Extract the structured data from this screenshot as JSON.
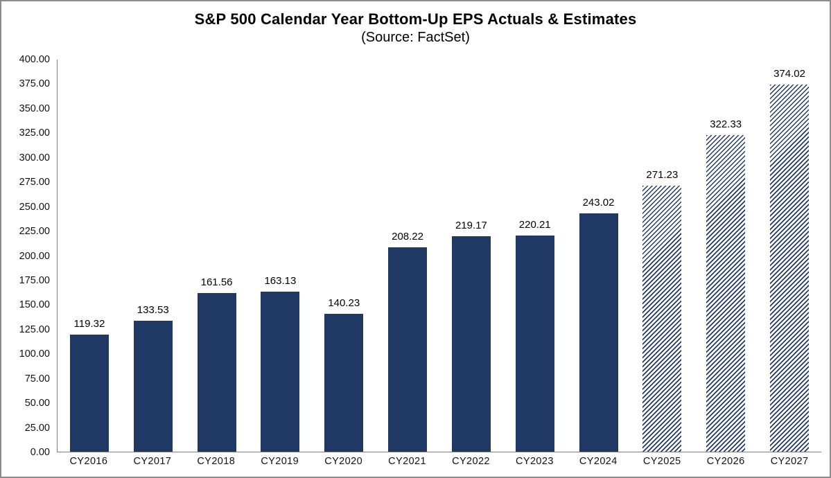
{
  "header": {
    "title": "S&P 500 Calendar Year Bottom-Up EPS Actuals & Estimates",
    "subtitle": "(Source: FactSet)"
  },
  "colors": {
    "bar_solid": "#1F3864",
    "bar_hatch": "#1F3864",
    "axis_line": "#7f7f7f",
    "frame_border": "#8c8c8c",
    "text": "#000000",
    "background": "#ffffff"
  },
  "chart_data": {
    "type": "bar",
    "title": "S&P 500 Calendar Year Bottom-Up EPS Actuals & Estimates",
    "subtitle": "(Source: FactSet)",
    "categories": [
      "CY2016",
      "CY2017",
      "CY2018",
      "CY2019",
      "CY2020",
      "CY2021",
      "CY2022",
      "CY2023",
      "CY2024",
      "CY2025",
      "CY2026",
      "CY2027"
    ],
    "values": [
      119.32,
      133.53,
      161.56,
      163.13,
      140.23,
      208.22,
      219.17,
      220.21,
      243.02,
      271.23,
      322.33,
      374.02
    ],
    "value_labels": [
      "119.32",
      "133.53",
      "161.56",
      "163.13",
      "140.23",
      "208.22",
      "219.17",
      "220.21",
      "243.02",
      "271.23",
      "322.33",
      "374.02"
    ],
    "bar_styles": [
      "solid",
      "solid",
      "solid",
      "solid",
      "solid",
      "solid",
      "solid",
      "solid",
      "solid",
      "hatched",
      "hatched",
      "hatched"
    ],
    "estimate_categories": [
      "CY2025",
      "CY2026",
      "CY2027"
    ],
    "ylim": [
      0,
      400
    ],
    "ytick_step": 25,
    "ytick_labels": [
      "400.00",
      "375.00",
      "350.00",
      "325.00",
      "300.00",
      "275.00",
      "250.00",
      "225.00",
      "200.00",
      "175.00",
      "150.00",
      "125.00",
      "100.00",
      "75.00",
      "50.00",
      "25.00",
      "0.00"
    ],
    "xlabel": "",
    "ylabel": "",
    "grid": false,
    "legend": null,
    "data_labels": true
  }
}
